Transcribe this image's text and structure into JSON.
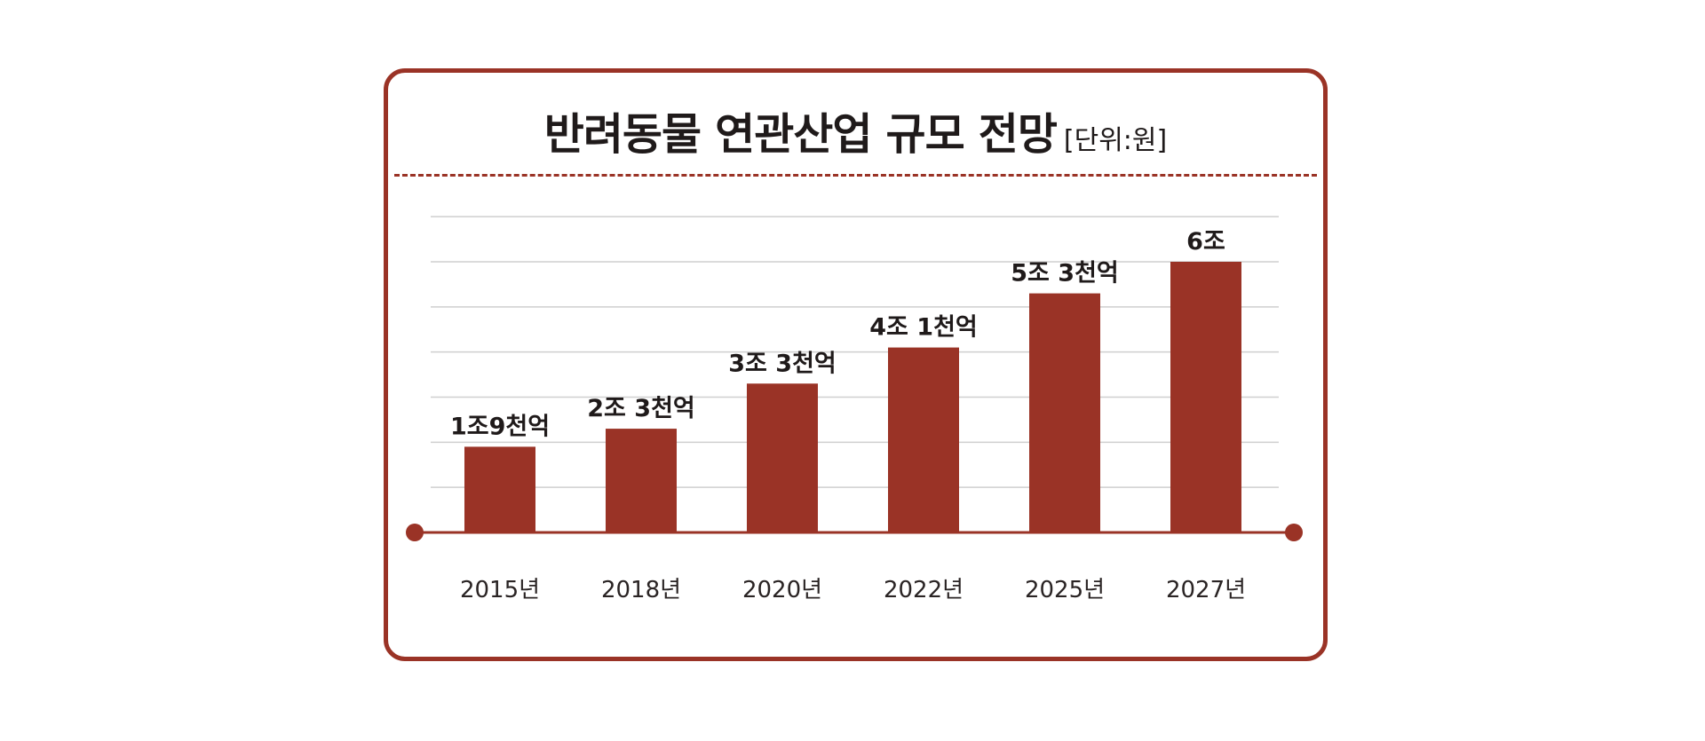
{
  "header": {
    "title": "반려동물 연관산업 규모 전망",
    "unit": "[단위:원]"
  },
  "colors": {
    "accent": "#9a3326",
    "grid": "#cfcfcf",
    "text": "#1f1a1a"
  },
  "chart_data": {
    "type": "bar",
    "title": "반려동물 연관산업 규모 전망",
    "unit": "[단위:원]",
    "categories": [
      "2015년",
      "2018년",
      "2020년",
      "2022년",
      "2025년",
      "2027년"
    ],
    "values": [
      1.9,
      2.3,
      3.3,
      4.1,
      5.3,
      6.0
    ],
    "value_unit": "조 원",
    "data_labels": [
      "1조9천억",
      "2조 3천억",
      "3조 3천억",
      "4조 1천억",
      "5조 3천억",
      "6조"
    ],
    "ylim": [
      0,
      7
    ],
    "grid": true,
    "legend": "none"
  }
}
